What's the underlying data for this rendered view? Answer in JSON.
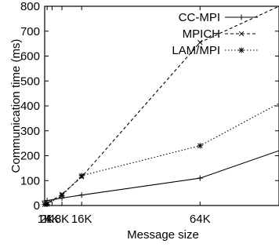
{
  "chart_data": {
    "type": "line",
    "xlabel": "Message size",
    "ylabel": "Communication time (ms)",
    "x_tick_labels": [
      "1K",
      "2K",
      "4K",
      "8K",
      "16K",
      "64K"
    ],
    "x_tick_values": [
      1,
      2,
      4,
      8,
      16,
      64
    ],
    "xlim": [
      1,
      96
    ],
    "ylim": [
      0,
      800
    ],
    "y_ticks": [
      0,
      100,
      200,
      300,
      400,
      500,
      600,
      700,
      800
    ],
    "legend_position": "top-right",
    "grid": false,
    "series": [
      {
        "name": "CC-MPI",
        "style": "solid",
        "marker": "plus",
        "color": "#000000",
        "x": [
          1,
          2,
          8,
          16,
          64,
          96
        ],
        "y": [
          18,
          20,
          30,
          42,
          110,
          220
        ]
      },
      {
        "name": "MPICH",
        "style": "dashed",
        "marker": "cross",
        "color": "#000000",
        "x": [
          1,
          2,
          8,
          16,
          64,
          96
        ],
        "y": [
          5,
          8,
          45,
          115,
          655,
          800
        ]
      },
      {
        "name": "LAM/MPI",
        "style": "dotted",
        "marker": "asterisk",
        "color": "#000000",
        "x": [
          1,
          2,
          8,
          16,
          64,
          96
        ],
        "y": [
          5,
          5,
          40,
          120,
          240,
          410
        ]
      }
    ]
  }
}
